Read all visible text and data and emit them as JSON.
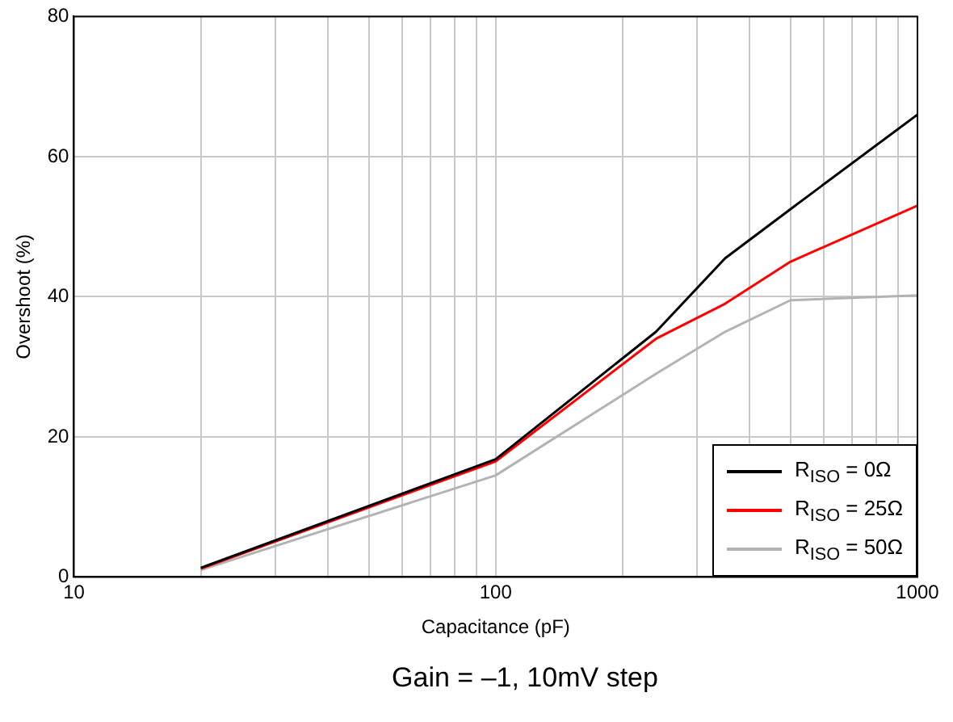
{
  "chart_data": {
    "type": "line",
    "xlabel": "Capacitance (pF)",
    "ylabel": "Overshoot (%)",
    "annotations": [
      "Gain = –1, 10mV step"
    ],
    "log": "x",
    "grid": true,
    "legend": "bottom right",
    "marker": "none",
    "line_style": "solid",
    "xlim": [
      10,
      1000
    ],
    "xticks": [
      10,
      {
        "value": 20,
        "label": null
      },
      {
        "value": 30,
        "label": null
      },
      {
        "value": 40,
        "label": null
      },
      {
        "value": 50,
        "label": null
      },
      {
        "value": 60,
        "label": null
      },
      {
        "value": 70,
        "label": null
      },
      {
        "value": 80,
        "label": null
      },
      {
        "value": 90,
        "label": null
      },
      100,
      {
        "value": 200,
        "label": null
      },
      {
        "value": 300,
        "label": null
      },
      {
        "value": 400,
        "label": null
      },
      {
        "value": 500,
        "label": null
      },
      {
        "value": 600,
        "label": null
      },
      {
        "value": 700,
        "label": null
      },
      {
        "value": 800,
        "label": null
      },
      {
        "value": 900,
        "label": null
      },
      1000
    ],
    "ylim": [
      0,
      80
    ],
    "yticks": [
      0,
      20,
      40,
      60,
      80
    ],
    "x": [
      20,
      100,
      240,
      350,
      500,
      1000
    ],
    "series": [
      {
        "name": "R$_{ISO}$ = 0Ω",
        "color": "#000000",
        "values": [
          1.3,
          16.8,
          35,
          45.5,
          52.5,
          66
        ]
      },
      {
        "name": "R$_{ISO}$ = 25Ω",
        "color": "#ff0000",
        "values": [
          1.2,
          16.5,
          34,
          39,
          45,
          53
        ]
      },
      {
        "name": "R$_{ISO}$ = 50Ω",
        "color": "#b3b3b3",
        "values": [
          1,
          14.5,
          29,
          35,
          39.5,
          40.2
        ]
      }
    ]
  }
}
